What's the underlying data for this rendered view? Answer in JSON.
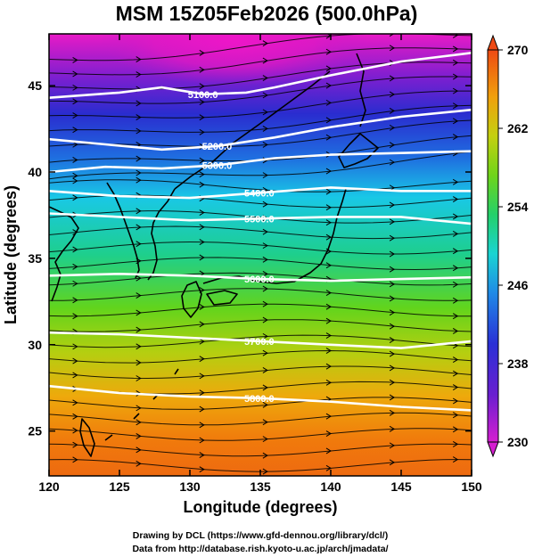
{
  "title": "MSM 15Z05Feb2026 (500.0hPa)",
  "x_axis": {
    "label": "Longitude (degrees)",
    "range": [
      120,
      150
    ],
    "ticks": [
      "120",
      "125",
      "130",
      "135",
      "140",
      "145",
      "150"
    ]
  },
  "y_axis": {
    "label": "Latitude  (degrees)",
    "range": [
      22.4,
      48
    ],
    "ticks": [
      "25",
      "30",
      "35",
      "40",
      "45"
    ]
  },
  "colorbar": {
    "range": [
      230,
      270
    ],
    "ticks": [
      "230",
      "238",
      "246",
      "254",
      "262",
      "270"
    ],
    "shape": "triangular ends (over/under)"
  },
  "credits": {
    "line1": "Drawing by DCL (https://www.gfd-dennou.org/library/dcl/)",
    "line2": "Data from http://database.rish.kyoto-u.ac.jp/arch/jmadata/"
  },
  "chart_data": {
    "type": "heatmap",
    "field": "temperature (shaded) with geopotential height contours and streamlines",
    "grid": false,
    "temperature_by_latitude": {
      "lat": [
        48,
        46,
        44,
        42,
        40,
        38,
        36,
        34,
        32,
        30,
        28,
        26,
        24,
        22.4
      ],
      "value": [
        231,
        234,
        238,
        241,
        244,
        246,
        249,
        252,
        255,
        257,
        260,
        263,
        265,
        266
      ]
    },
    "cold_core": {
      "lon": 133,
      "lat": 47.5,
      "value": 230
    },
    "height_contours": [
      {
        "label": "5100.0",
        "points": [
          [
            120,
            44.3
          ],
          [
            125,
            44.6
          ],
          [
            128,
            44.9
          ],
          [
            131,
            44.5
          ],
          [
            134,
            44.6
          ],
          [
            136,
            44.9
          ],
          [
            140,
            45.6
          ],
          [
            145,
            46.4
          ],
          [
            150,
            46.9
          ]
        ]
      },
      {
        "label": "5200.0",
        "points": [
          [
            120,
            41.9
          ],
          [
            124,
            41.6
          ],
          [
            128,
            41.3
          ],
          [
            132,
            41.5
          ],
          [
            136,
            42.0
          ],
          [
            140,
            42.6
          ],
          [
            145,
            43.2
          ],
          [
            150,
            43.6
          ]
        ]
      },
      {
        "label": "5300.0",
        "points": [
          [
            120,
            40.0
          ],
          [
            124,
            40.3
          ],
          [
            128,
            40.2
          ],
          [
            132,
            40.4
          ],
          [
            136,
            40.8
          ],
          [
            140,
            41.0
          ],
          [
            145,
            41.1
          ],
          [
            150,
            41.2
          ]
        ]
      },
      {
        "label": "5400.0",
        "points": [
          [
            120,
            38.9
          ],
          [
            125,
            38.6
          ],
          [
            130,
            38.5
          ],
          [
            135,
            38.8
          ],
          [
            140,
            39.1
          ],
          [
            145,
            38.9
          ],
          [
            150,
            38.9
          ]
        ]
      },
      {
        "label": "5500.0",
        "points": [
          [
            120,
            37.6
          ],
          [
            125,
            37.4
          ],
          [
            130,
            37.2
          ],
          [
            135,
            37.3
          ],
          [
            140,
            37.4
          ],
          [
            145,
            37.4
          ],
          [
            150,
            37.0
          ]
        ]
      },
      {
        "label": "5600.0",
        "points": [
          [
            120,
            34.0
          ],
          [
            125,
            34.1
          ],
          [
            130,
            34.0
          ],
          [
            135,
            33.8
          ],
          [
            140,
            33.7
          ],
          [
            145,
            33.8
          ],
          [
            150,
            33.9
          ]
        ]
      },
      {
        "label": "5700.0",
        "points": [
          [
            120,
            30.7
          ],
          [
            125,
            30.6
          ],
          [
            130,
            30.4
          ],
          [
            135,
            30.2
          ],
          [
            140,
            30.0
          ],
          [
            145,
            29.8
          ],
          [
            150,
            30.2
          ]
        ]
      },
      {
        "label": "5800.0",
        "points": [
          [
            120,
            27.6
          ],
          [
            125,
            27.2
          ],
          [
            130,
            27.0
          ],
          [
            135,
            26.9
          ],
          [
            140,
            26.7
          ],
          [
            145,
            26.4
          ],
          [
            150,
            26.2
          ]
        ]
      }
    ]
  }
}
